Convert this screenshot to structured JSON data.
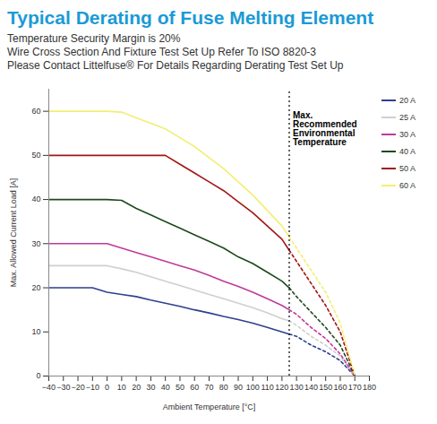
{
  "chart_data": {
    "type": "line",
    "title": "Typical Derating of Fuse Melting Element",
    "subtitle": [
      "Temperature Security Margin is 20%",
      "Wire Cross Section And Fixture Test Set Up Refer To ISO 8820-3",
      "Please Contact Littelfuse® For Details Regarding Derating Test Set Up"
    ],
    "x_label": "Ambient Temperature [°C]",
    "y_label": "Max. Allowed Current Load [A]",
    "x": [
      -40,
      -30,
      -20,
      -10,
      0,
      10,
      20,
      30,
      40,
      50,
      60,
      70,
      80,
      90,
      100,
      110,
      120,
      125,
      130,
      140,
      150,
      160,
      170
    ],
    "series": [
      {
        "name": "20 A",
        "color": "#2e3f8f",
        "values": [
          20,
          20,
          20,
          20,
          19,
          18.5,
          18,
          17.2,
          16.5,
          15.8,
          15,
          14.3,
          13.5,
          12.8,
          12,
          11,
          10,
          9.5,
          9,
          7,
          5.5,
          3.5,
          0
        ]
      },
      {
        "name": "25 A",
        "color": "#cfcfcf",
        "values": [
          25,
          25,
          25,
          25,
          25,
          24.3,
          23.5,
          22.5,
          21.5,
          20.5,
          19.5,
          18.5,
          17.5,
          16.5,
          15.5,
          14.3,
          13,
          12.5,
          11.5,
          9,
          7,
          4.5,
          0
        ]
      },
      {
        "name": "30 A",
        "color": "#c0399b",
        "values": [
          30,
          30,
          30,
          30,
          30,
          29,
          28,
          27,
          26,
          25,
          24,
          22.8,
          21.5,
          20.3,
          19,
          17.5,
          16,
          15,
          14,
          11,
          8.5,
          5,
          0
        ]
      },
      {
        "name": "40 A",
        "color": "#1d4a1d",
        "values": [
          40,
          40,
          40,
          40,
          40,
          39.8,
          38,
          36.5,
          35,
          33.5,
          32,
          30.5,
          29,
          27,
          25.5,
          23.5,
          21.5,
          20,
          18,
          14.5,
          11,
          7,
          0
        ]
      },
      {
        "name": "50 A",
        "color": "#a31515",
        "values": [
          50,
          50,
          50,
          50,
          50,
          50,
          50,
          50,
          50,
          48,
          46,
          44,
          42,
          39.5,
          37,
          34,
          31,
          28.5,
          26,
          21,
          16,
          10,
          0
        ]
      },
      {
        "name": "60 A",
        "color": "#f3ee72",
        "values": [
          60,
          60,
          60,
          60,
          60,
          59.8,
          58.5,
          57.3,
          56,
          54,
          52,
          49.5,
          47,
          44,
          41,
          37.5,
          34,
          31.5,
          29,
          24,
          19,
          12,
          0
        ]
      }
    ],
    "annotations": [
      {
        "x": 125,
        "text": "Max. Recommended Environmental Temperature"
      }
    ],
    "xlim": [
      -40,
      180
    ],
    "xticks": [
      -40,
      -30,
      -20,
      -10,
      0,
      10,
      20,
      30,
      40,
      50,
      60,
      70,
      80,
      90,
      100,
      110,
      120,
      130,
      140,
      150,
      160,
      170,
      180
    ],
    "ylim": [
      0,
      65
    ],
    "yticks": [
      0,
      10,
      20,
      30,
      40,
      50,
      60
    ],
    "grid": false,
    "legend": "right"
  }
}
